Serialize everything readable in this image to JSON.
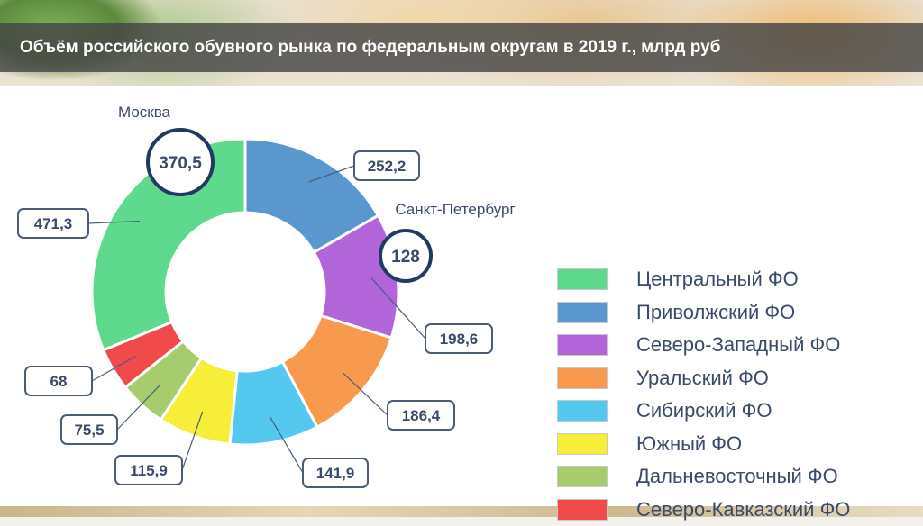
{
  "title": "Объём российского обувного рынка по федеральным округам в 2019 г., млрд руб",
  "chart_data": {
    "type": "pie",
    "variant": "donut",
    "start": "top, clockwise",
    "slices": [
      {
        "name": "Приволжский ФО",
        "value": 252.2,
        "label": "252,2",
        "color": "#5b97cf"
      },
      {
        "name": "Северо-Западный ФО",
        "value": 198.6,
        "label": "198,6",
        "color": "#b265d8"
      },
      {
        "name": "Уральский ФО",
        "value": 186.4,
        "label": "186,4",
        "color": "#f79a4e"
      },
      {
        "name": "Сибирский ФО",
        "value": 141.9,
        "label": "141,9",
        "color": "#55c8ef"
      },
      {
        "name": "Южный ФО",
        "value": 115.9,
        "label": "115,9",
        "color": "#f6ee38"
      },
      {
        "name": "Дальневосточный ФО",
        "value": 75.5,
        "label": "75,5",
        "color": "#a6cc6e"
      },
      {
        "name": "Северо-Кавказский ФО",
        "value": 68,
        "label": "68",
        "color": "#f04a4a"
      },
      {
        "name": "Центральный ФО",
        "value": 471.3,
        "label": "471,3",
        "color": "#5ed98e"
      }
    ],
    "callouts": [
      {
        "city": "Москва",
        "value": 370.5,
        "label": "370,5"
      },
      {
        "city": "Санкт-Петербург",
        "value": 128,
        "label": "128"
      }
    ],
    "legend": {
      "placement": "right",
      "items": [
        {
          "label": "Центральный ФО",
          "color": "#5ed98e"
        },
        {
          "label": "Приволжский ФО",
          "color": "#5b97cf"
        },
        {
          "label": "Северо-Западный ФО",
          "color": "#b265d8"
        },
        {
          "label": "Уральский ФО",
          "color": "#f79a4e"
        },
        {
          "label": "Сибирский ФО",
          "color": "#55c8ef"
        },
        {
          "label": "Южный ФО",
          "color": "#f6ee38"
        },
        {
          "label": "Дальневосточный ФО",
          "color": "#a6cc6e"
        },
        {
          "label": "Северо-Кавказский ФО",
          "color": "#f04a4a"
        }
      ]
    }
  },
  "colors": {
    "title_bar": "#464646",
    "label_border": "#4a5b78",
    "callout_border": "#1f3b63",
    "text": "#3a4a6b"
  }
}
